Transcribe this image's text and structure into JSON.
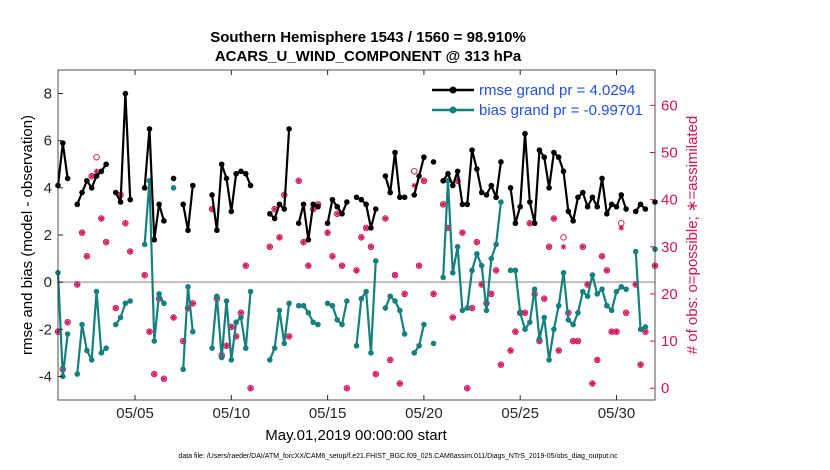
{
  "chart_data": {
    "type": "line",
    "title": "Southern Hemisphere 1543 / 1560 = 98.910%",
    "subtitle": "ACARS_U_WIND_COMPONENT @ 313 hPa",
    "xlabel": "May.01,2019 00:00:00 start",
    "ylabel_left": "rmse and bias (model - observation)",
    "ylabel_right": "# of obs: o=possible; ∗=assimilated",
    "footer": "data file: /Users/raeder/DAI/ATM_forcXX/CAM6_setup/f.e21.FHIST_BGC.f09_025.CAM6assim.011/Diags_NTrS_2019-05/obs_diag_output.nc",
    "x_tick_labels": [
      "05/05",
      "05/10",
      "05/15",
      "05/20",
      "05/25",
      "05/30"
    ],
    "x_tick_values": [
      5,
      10,
      15,
      20,
      25,
      30
    ],
    "xlim": [
      1,
      32
    ],
    "ylim_left": [
      -5,
      9
    ],
    "y_ticks_left": [
      -4,
      -2,
      0,
      2,
      4,
      6,
      8
    ],
    "ylim_right": [
      -2.5,
      67.5
    ],
    "y_ticks_right": [
      0,
      10,
      20,
      30,
      40,
      50,
      60
    ],
    "zero_line": 0,
    "grid": false,
    "legend_position": "top-right",
    "colors": {
      "rmse": "#000000",
      "bias": "#15807e",
      "obs": "#d1145a",
      "zero": "#bdbdbd",
      "legend_text": "#1f4fe0"
    },
    "series": [
      {
        "name": "rmse grand pr = 4.0294",
        "axis": "left",
        "x": [
          1.0,
          1.25,
          1.5,
          2.0,
          2.25,
          2.5,
          2.75,
          3.0,
          3.25,
          3.5,
          4.0,
          4.25,
          4.5,
          4.75,
          5.5,
          5.75,
          6.0,
          6.25,
          6.5,
          7.0,
          7.5,
          7.75,
          8.0,
          9.0,
          9.25,
          9.5,
          9.75,
          10.0,
          10.25,
          10.5,
          10.75,
          11.0,
          12.0,
          12.25,
          12.5,
          12.75,
          13.0,
          13.5,
          13.75,
          14.0,
          14.25,
          14.5,
          15.0,
          15.25,
          15.5,
          15.75,
          16.0,
          16.5,
          16.75,
          17.0,
          17.25,
          17.5,
          18.0,
          18.25,
          18.5,
          18.75,
          19.0,
          19.5,
          19.75,
          20.0,
          20.5,
          21.0,
          21.25,
          21.5,
          21.75,
          22.0,
          22.25,
          22.5,
          22.75,
          23.0,
          23.25,
          23.5,
          23.75,
          24.0,
          24.5,
          24.75,
          25.0,
          25.25,
          25.5,
          25.75,
          26.0,
          26.25,
          26.5,
          26.75,
          27.0,
          27.25,
          27.5,
          27.75,
          28.0,
          28.25,
          28.5,
          28.75,
          29.0,
          29.25,
          29.5,
          29.75,
          30.0,
          30.25,
          30.5,
          31.0,
          31.25,
          31.5,
          32.0
        ],
        "y": [
          4.1,
          5.9,
          4.4,
          3.3,
          3.8,
          4.3,
          4.0,
          4.5,
          4.7,
          5.0,
          3.8,
          3.4,
          8.0,
          3.5,
          4.0,
          6.5,
          1.8,
          3.3,
          2.6,
          4.4,
          3.3,
          2.2,
          4.1,
          3.7,
          2.2,
          5.0,
          4.4,
          3.0,
          4.6,
          4.7,
          4.6,
          4.1,
          2.9,
          2.7,
          3.3,
          3.1,
          6.5,
          2.5,
          3.3,
          1.8,
          3.3,
          3.2,
          2.5,
          3.5,
          3.2,
          2.9,
          3.4,
          3.6,
          3.5,
          3.3,
          2.3,
          3.1,
          4.5,
          3.8,
          5.5,
          3.6,
          3.6,
          3.7,
          4.5,
          5.3,
          5.1,
          4.3,
          4.6,
          4.1,
          4.7,
          3.3,
          3.3,
          5.6,
          4.8,
          3.8,
          3.7,
          4.1,
          3.6,
          5.1,
          4.0,
          2.5,
          3.2,
          6.3,
          3.4,
          2.5,
          5.6,
          5.3,
          4.0,
          5.5,
          5.3,
          4.7,
          3.0,
          2.6,
          3.6,
          3.8,
          3.2,
          3.6,
          3.2,
          4.4,
          2.9,
          3.3,
          3.2,
          3.7,
          3.1,
          3.0,
          3.3,
          3.1,
          3.4
        ]
      },
      {
        "name": "bias grand pr = -0.99701",
        "axis": "left",
        "x": [
          1.0,
          1.25,
          1.5,
          2.0,
          2.25,
          2.5,
          2.75,
          3.0,
          3.25,
          3.5,
          4.0,
          4.25,
          4.5,
          4.75,
          5.5,
          5.75,
          6.0,
          6.25,
          6.5,
          7.0,
          7.5,
          7.75,
          8.0,
          9.0,
          9.25,
          9.5,
          9.75,
          10.0,
          10.25,
          10.5,
          10.75,
          11.0,
          12.0,
          12.25,
          12.5,
          12.75,
          13.0,
          13.5,
          13.75,
          14.0,
          14.25,
          14.5,
          15.0,
          15.25,
          15.5,
          15.75,
          16.0,
          16.5,
          16.75,
          17.0,
          17.25,
          17.5,
          18.0,
          18.25,
          18.5,
          18.75,
          19.0,
          19.5,
          19.75,
          20.0,
          20.5,
          21.0,
          21.25,
          21.5,
          21.75,
          22.0,
          22.25,
          22.5,
          22.75,
          23.0,
          23.25,
          23.5,
          23.75,
          24.0,
          24.5,
          24.75,
          25.0,
          25.25,
          25.5,
          25.75,
          26.0,
          26.25,
          26.5,
          26.75,
          27.0,
          27.25,
          27.5,
          27.75,
          28.0,
          28.25,
          28.5,
          28.75,
          29.0,
          29.25,
          29.5,
          29.75,
          30.0,
          30.25,
          30.5,
          31.0,
          31.25,
          31.5,
          32.0
        ],
        "y": [
          0.4,
          -4.0,
          -2.2,
          -3.9,
          -1.8,
          -2.9,
          -3.3,
          -0.4,
          -3.0,
          -2.8,
          -1.8,
          -1.5,
          -0.9,
          -0.8,
          1.6,
          4.3,
          -2.5,
          -0.5,
          -0.9,
          4.0,
          -3.7,
          -0.2,
          -2.1,
          -2.8,
          -0.6,
          -3.2,
          -0.8,
          -3.3,
          -1.7,
          -1.5,
          -2.8,
          -0.4,
          -3.3,
          -2.8,
          -1.2,
          -2.6,
          -0.9,
          -1.0,
          -1.0,
          -1.3,
          -1.7,
          -1.8,
          -0.9,
          -1.0,
          -1.6,
          -1.8,
          -0.8,
          -2.7,
          -0.7,
          -0.4,
          -3.0,
          0.9,
          -1.1,
          -0.6,
          -0.8,
          -1.2,
          -2.2,
          -3.0,
          -2.7,
          -1.8,
          -2.6,
          0.2,
          4.3,
          0.4,
          1.5,
          -1.2,
          -1.1,
          0.5,
          1.2,
          0.7,
          -1.2,
          1.0,
          1.6,
          3.4,
          0.5,
          0.5,
          -1.3,
          -2.0,
          -1.7,
          -0.3,
          -2.4,
          -1.5,
          -3.3,
          -2.0,
          -1.0,
          0.4,
          -1.6,
          -1.8,
          -1.3,
          -0.4,
          -0.6,
          0.3,
          -0.5,
          -0.3,
          -1.0,
          -1.2,
          -0.4,
          -0.2,
          -0.3,
          1.3,
          -2.0,
          -1.9,
          1.4
        ]
      },
      {
        "name": "possible",
        "axis": "right",
        "marker": "o",
        "x": [
          1.0,
          1.25,
          1.5,
          2.0,
          2.25,
          2.5,
          2.75,
          3.0,
          3.25,
          3.5,
          4.0,
          4.25,
          4.5,
          4.75,
          5.5,
          5.75,
          6.0,
          6.25,
          6.5,
          7.0,
          7.5,
          7.75,
          8.0,
          9.0,
          9.25,
          9.5,
          9.75,
          10.0,
          10.25,
          10.5,
          10.75,
          11.0,
          12.0,
          12.25,
          12.5,
          12.75,
          13.0,
          13.5,
          13.75,
          14.0,
          14.25,
          14.5,
          15.0,
          15.25,
          15.5,
          15.75,
          16.0,
          16.5,
          16.75,
          17.0,
          17.25,
          17.5,
          18.0,
          18.25,
          18.5,
          18.75,
          19.0,
          19.5,
          19.75,
          20.0,
          20.5,
          21.0,
          21.25,
          21.5,
          21.75,
          22.0,
          22.25,
          22.5,
          22.75,
          23.0,
          23.25,
          23.5,
          23.75,
          24.0,
          24.5,
          24.75,
          25.0,
          25.25,
          25.5,
          25.75,
          26.0,
          26.25,
          26.5,
          26.75,
          27.0,
          27.25,
          27.5,
          27.75,
          28.0,
          28.25,
          28.5,
          28.75,
          29.0,
          29.25,
          29.5,
          29.75,
          30.0,
          30.25,
          30.5,
          31.0,
          31.25,
          31.5,
          32.0
        ],
        "y": [
          12,
          4,
          14,
          22,
          33,
          28,
          45,
          49,
          36,
          31,
          17,
          41,
          35,
          29,
          24,
          12,
          3,
          19,
          2,
          15,
          10,
          17,
          18,
          38,
          19,
          7,
          9,
          13,
          11,
          16,
          26,
          0,
          30,
          38,
          32,
          41,
          11,
          44,
          31,
          26,
          38,
          39,
          33,
          28,
          37,
          26,
          0,
          25,
          32,
          34,
          30,
          3,
          36,
          6,
          24,
          1,
          20,
          46,
          26,
          44,
          20,
          39,
          34,
          15,
          44,
          33,
          0,
          17,
          31,
          22,
          18,
          20,
          25,
          5,
          8,
          12,
          16,
          16,
          35,
          20,
          10,
          19,
          30,
          36,
          8,
          32,
          16,
          10,
          10,
          30,
          22,
          1,
          6,
          28,
          25,
          12,
          12,
          35,
          16,
          22,
          5,
          12,
          26
        ]
      },
      {
        "name": "assimilated",
        "axis": "right",
        "marker": "*",
        "x": [
          1.0,
          1.25,
          1.5,
          2.0,
          2.25,
          2.5,
          2.75,
          3.0,
          3.25,
          3.5,
          4.0,
          4.25,
          4.5,
          4.75,
          5.5,
          5.75,
          6.0,
          6.25,
          6.5,
          7.0,
          7.5,
          7.75,
          8.0,
          9.0,
          9.25,
          9.5,
          9.75,
          10.0,
          10.25,
          10.5,
          10.75,
          11.0,
          12.0,
          12.25,
          12.5,
          12.75,
          13.0,
          13.5,
          13.75,
          14.0,
          14.25,
          14.5,
          15.0,
          15.25,
          15.5,
          15.75,
          16.0,
          16.5,
          16.75,
          17.0,
          17.25,
          17.5,
          18.0,
          18.25,
          18.5,
          18.75,
          19.0,
          19.5,
          19.75,
          20.0,
          20.5,
          21.0,
          21.25,
          21.5,
          21.75,
          22.0,
          22.25,
          22.5,
          22.75,
          23.0,
          23.25,
          23.5,
          23.75,
          24.0,
          24.5,
          24.75,
          25.0,
          25.25,
          25.5,
          25.75,
          26.0,
          26.25,
          26.5,
          26.75,
          27.0,
          27.25,
          27.5,
          27.75,
          28.0,
          28.25,
          28.5,
          28.75,
          29.0,
          29.25,
          29.5,
          29.75,
          30.0,
          30.25,
          30.5,
          31.0,
          31.25,
          31.5,
          32.0
        ],
        "y": [
          12,
          4,
          14,
          22,
          33,
          28,
          45,
          46,
          36,
          31,
          17,
          41,
          35,
          29,
          24,
          12,
          3,
          19,
          2,
          15,
          10,
          17,
          18,
          38,
          19,
          7,
          9,
          13,
          11,
          16,
          26,
          0,
          30,
          38,
          32,
          41,
          11,
          44,
          31,
          26,
          38,
          39,
          33,
          28,
          37,
          26,
          0,
          25,
          32,
          34,
          30,
          3,
          36,
          6,
          24,
          1,
          20,
          43,
          26,
          44,
          20,
          39,
          34,
          15,
          44,
          33,
          0,
          17,
          31,
          22,
          18,
          20,
          25,
          5,
          8,
          12,
          16,
          16,
          35,
          20,
          10,
          19,
          30,
          36,
          8,
          30,
          16,
          10,
          10,
          30,
          22,
          1,
          6,
          28,
          25,
          12,
          12,
          34,
          16,
          22,
          5,
          12,
          26
        ]
      }
    ]
  }
}
